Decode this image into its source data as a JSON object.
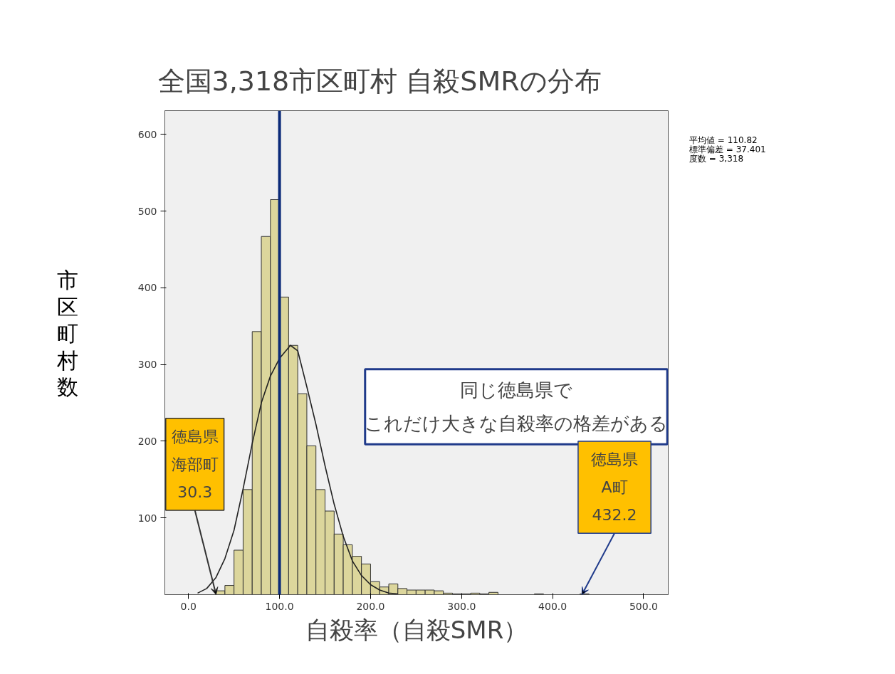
{
  "chart_data": {
    "type": "histogram",
    "title": "全国3,318市区町村  自殺SMRの分布",
    "xlabel": "自殺率（自殺SMR）",
    "ylabel": "市区町村数",
    "bins": [
      30,
      40,
      50,
      60,
      70,
      80,
      90,
      100,
      110,
      120,
      130,
      140,
      150,
      160,
      170,
      180,
      190,
      200,
      210,
      220,
      230,
      240,
      250,
      260,
      270,
      280,
      290,
      300,
      310,
      320,
      330,
      340,
      350,
      360,
      370,
      380,
      390,
      400,
      410,
      420,
      430,
      440
    ],
    "values": [
      5,
      12,
      58,
      137,
      343,
      467,
      515,
      388,
      325,
      262,
      194,
      137,
      109,
      79,
      65,
      50,
      40,
      17,
      10,
      14,
      8,
      6,
      6,
      6,
      5,
      2,
      1,
      1,
      2,
      1,
      3,
      0,
      0,
      0,
      0,
      1,
      0,
      0,
      0,
      0,
      1
    ],
    "color": "#dcd69c",
    "series": [
      {
        "type": "line",
        "color": "#222222",
        "x": [
          10,
          20,
          30,
          40,
          50,
          60,
          70,
          80,
          90,
          100,
          112,
          120,
          130,
          140,
          150,
          160,
          170,
          180,
          190,
          200,
          210,
          220,
          230
        ],
        "values": [
          2,
          8,
          22,
          47,
          84,
          138,
          197,
          250,
          285,
          308,
          325,
          318,
          271,
          222,
          168,
          118,
          76,
          44,
          25,
          13,
          6,
          2,
          1
        ]
      }
    ],
    "ref_lines": [
      {
        "axis": "x",
        "value": 100,
        "color": "#0b2a78"
      }
    ],
    "xlim": [
      -26,
      527
    ],
    "xticks": [
      {
        "value": 0,
        "label": "0.0"
      },
      {
        "value": 100,
        "label": "100.0"
      },
      {
        "value": 200,
        "label": "200.0"
      },
      {
        "value": 300,
        "label": "300.0"
      },
      {
        "value": 400,
        "label": "400.0"
      },
      {
        "value": 500,
        "label": "500.0"
      }
    ],
    "ylim": [
      0,
      631
    ],
    "yticks": [
      100,
      200,
      300,
      400,
      500,
      600
    ],
    "grid": false,
    "annotations": [
      "平均値 = 110.82\n標準偏差 = 37.401\n度数 = 3,318",
      "同じ徳島県で",
      "これだけ大きな自殺率の格差がある",
      "徳島県",
      "海部町",
      {
        "text": "30.3",
        "x": 30.3,
        "y": 0
      },
      "徳島県",
      "A町",
      {
        "text": "432.2",
        "x": 432.2,
        "y": 0
      }
    ]
  }
}
